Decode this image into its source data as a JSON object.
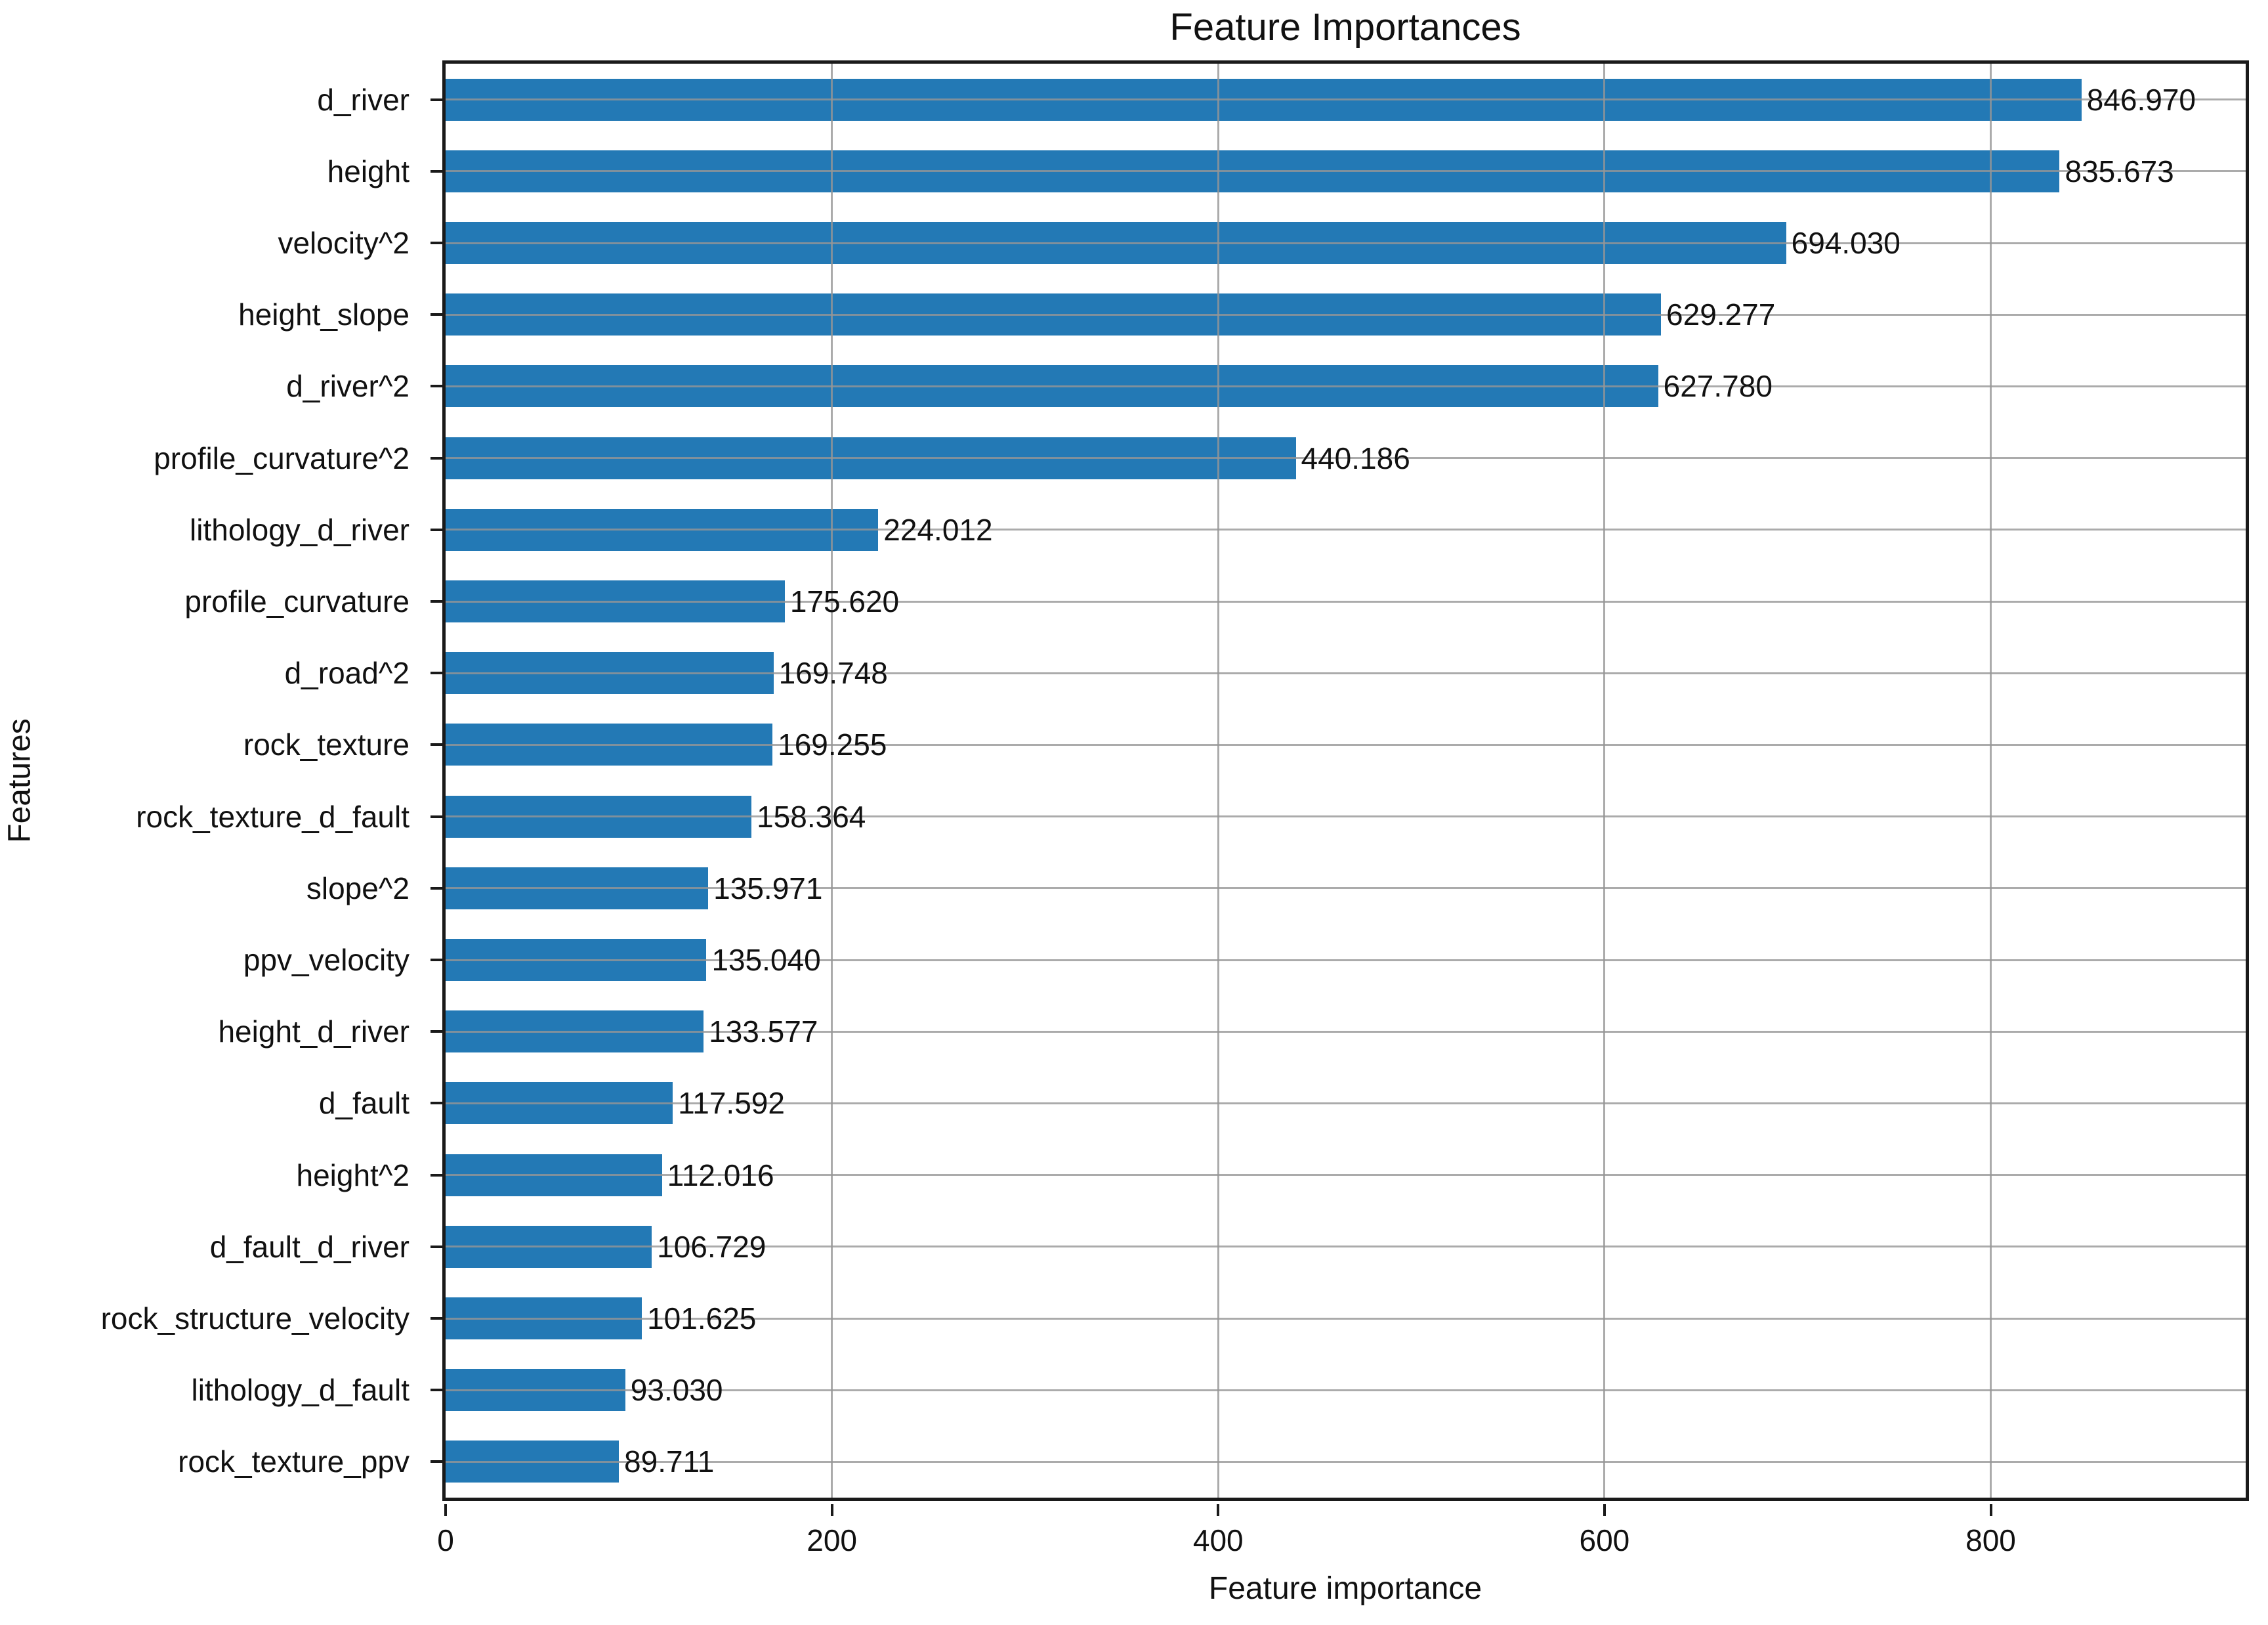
{
  "chart_data": {
    "type": "bar",
    "orientation": "horizontal",
    "title": "Feature Importances",
    "xlabel": "Feature importance",
    "ylabel": "Features",
    "categories": [
      "d_river",
      "height",
      "velocity^2",
      "height_slope",
      "d_river^2",
      "profile_curvature^2",
      "lithology_d_river",
      "profile_curvature",
      "d_road^2",
      "rock_texture",
      "rock_texture_d_fault",
      "slope^2",
      "ppv_velocity",
      "height_d_river",
      "d_fault",
      "height^2",
      "d_fault_d_river",
      "rock_structure_velocity",
      "lithology_d_fault",
      "rock_texture_ppv"
    ],
    "values": [
      846.97,
      835.673,
      694.03,
      629.277,
      627.78,
      440.186,
      224.012,
      175.62,
      169.748,
      169.255,
      158.364,
      135.971,
      135.04,
      133.577,
      117.592,
      112.016,
      106.729,
      101.625,
      93.03,
      89.711
    ],
    "value_labels": [
      "846.970",
      "835.673",
      "694.030",
      "629.277",
      "627.780",
      "440.186",
      "224.012",
      "175.620",
      "169.748",
      "169.255",
      "158.364",
      "135.971",
      "135.040",
      "133.577",
      "117.592",
      "112.016",
      "106.729",
      "101.625",
      "93.030",
      "89.711"
    ],
    "x_ticks": [
      0,
      200,
      400,
      600,
      800
    ],
    "xlim": [
      0,
      932
    ],
    "grid": true,
    "legend": "none",
    "bar_color": "#2379b5",
    "grid_color": "#969696",
    "axis_color": "#1a1a1a"
  }
}
